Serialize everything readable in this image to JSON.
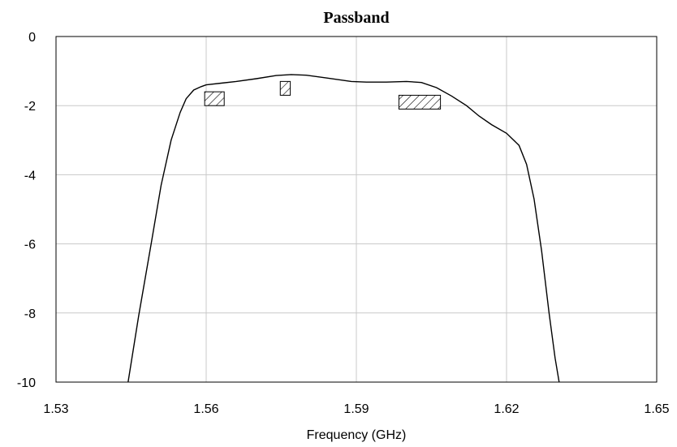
{
  "chart_data": {
    "type": "line",
    "title": "Passband",
    "xlabel": "Frequency (GHz)",
    "ylabel": "",
    "xlim": [
      1.53,
      1.65
    ],
    "ylim": [
      -10,
      0
    ],
    "xticks": [
      1.53,
      1.56,
      1.59,
      1.62,
      1.65
    ],
    "xtick_labels": [
      "1.53",
      "1.56",
      "1.59",
      "1.62",
      "1.65"
    ],
    "yticks": [
      0,
      -2,
      -4,
      -6,
      -8,
      -10
    ],
    "ytick_labels": [
      "0",
      "-2",
      "-4",
      "-6",
      "-8",
      "-10"
    ],
    "grid": true,
    "series": [
      {
        "x": [
          1.5444,
          1.5465,
          1.549,
          1.551,
          1.553,
          1.5548,
          1.556,
          1.5575,
          1.559,
          1.56,
          1.563,
          1.566,
          1.57,
          1.574,
          1.577,
          1.58,
          1.584,
          1.589,
          1.592,
          1.596,
          1.6,
          1.603,
          1.606,
          1.609,
          1.612,
          1.6145,
          1.617,
          1.62,
          1.6225,
          1.624,
          1.6255,
          1.627,
          1.6285,
          1.6297,
          1.6305
        ],
        "y": [
          -10.0,
          -8.1,
          -6.0,
          -4.3,
          -3.0,
          -2.2,
          -1.8,
          -1.55,
          -1.45,
          -1.4,
          -1.35,
          -1.3,
          -1.22,
          -1.13,
          -1.1,
          -1.12,
          -1.2,
          -1.3,
          -1.32,
          -1.32,
          -1.3,
          -1.33,
          -1.48,
          -1.72,
          -2.0,
          -2.3,
          -2.55,
          -2.8,
          -3.15,
          -3.7,
          -4.7,
          -6.2,
          -8.0,
          -9.3,
          -10.0
        ]
      }
    ],
    "masks": [
      {
        "x": [
          1.5597,
          1.5636
        ],
        "y": [
          -1.6,
          -2.0
        ]
      },
      {
        "x": [
          1.5748,
          1.5768
        ],
        "y": [
          -1.3,
          -1.7
        ]
      },
      {
        "x": [
          1.5985,
          1.6068
        ],
        "y": [
          -1.7,
          -2.1
        ]
      }
    ]
  }
}
